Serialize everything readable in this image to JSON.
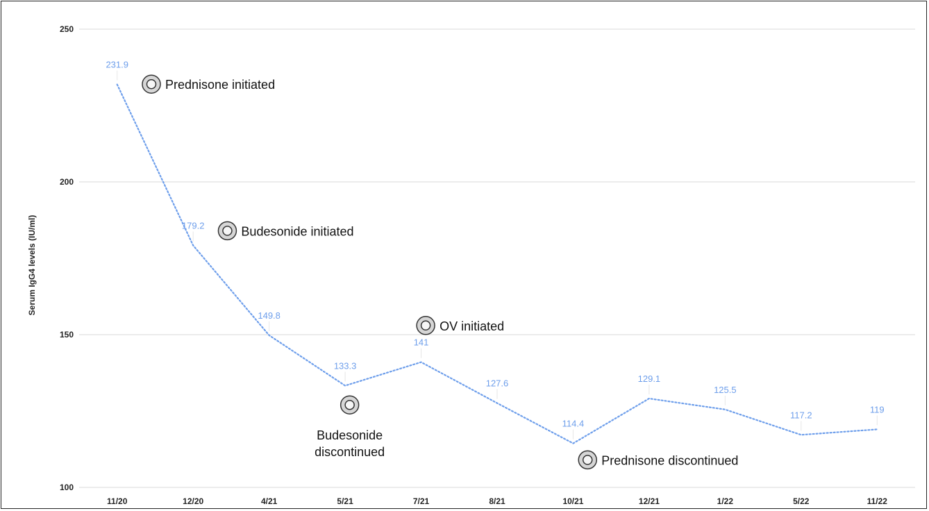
{
  "chart_data": {
    "type": "line",
    "ylabel": "Serum IgG4 levels (IU/ml)",
    "xlabel": "",
    "categories": [
      "11/20",
      "12/20",
      "4/21",
      "5/21",
      "7/21",
      "8/21",
      "10/21",
      "12/21",
      "1/22",
      "5/22",
      "11/22"
    ],
    "series": [
      {
        "values": [
          231.9,
          179.2,
          149.8,
          133.3,
          141,
          127.6,
          114.4,
          129.1,
          125.5,
          117.2,
          119
        ]
      }
    ],
    "data_labels": [
      "231.9",
      "179.2",
      "149.8",
      "133.3",
      "141",
      "127.6",
      "114.4",
      "129.1",
      "125.5",
      "117.2",
      "119"
    ],
    "ylim": [
      100,
      250
    ],
    "yticks": [
      100,
      150,
      200,
      250
    ],
    "ytick_labels": [
      "100",
      "150",
      "200",
      "250"
    ],
    "grid": "horizontal",
    "line_style": "dotted",
    "colors": {
      "series": "#6d9eeb",
      "grid": "#d9d9d9",
      "marker_ring": "#333333",
      "marker_fill": "#d6d6d6"
    },
    "annotations": [
      {
        "icon": "target-icon",
        "lines": [
          "Prednisone initiated"
        ],
        "x": 0.45,
        "y": 232,
        "label_position": "right"
      },
      {
        "icon": "target-icon",
        "lines": [
          "Budesonide initiated"
        ],
        "x": 1.45,
        "y": 184,
        "label_position": "right"
      },
      {
        "icon": "target-icon",
        "lines": [
          "OV initiated"
        ],
        "x": 4.06,
        "y": 153,
        "label_position": "right"
      },
      {
        "icon": "target-icon",
        "lines": [
          "Budesonide",
          "discontinued"
        ],
        "x": 3.06,
        "y": 127,
        "label_position": "below"
      },
      {
        "icon": "target-icon",
        "lines": [
          "Prednisone discontinued"
        ],
        "x": 6.19,
        "y": 109,
        "label_position": "right"
      }
    ]
  }
}
